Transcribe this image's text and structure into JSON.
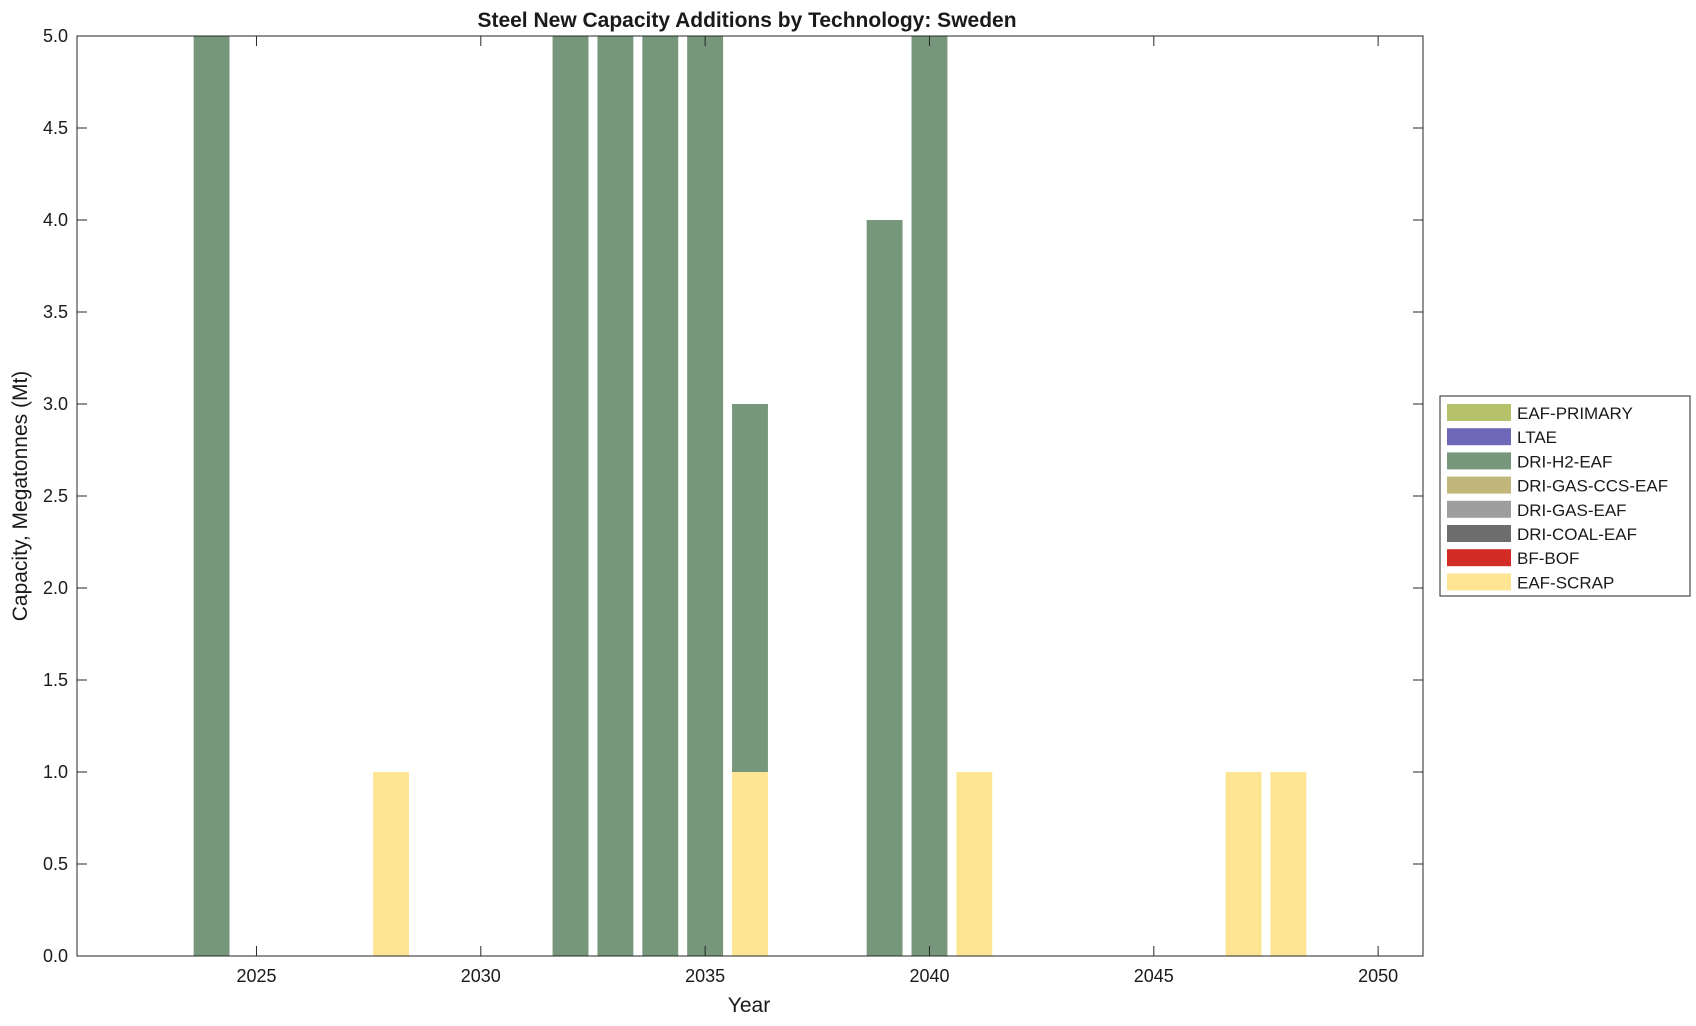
{
  "chart_data": {
    "type": "bar",
    "stacked": true,
    "title": "Steel New Capacity Additions by Technology: Sweden",
    "xlabel": "Year",
    "ylabel": "Capacity, Megatonnes (Mt)",
    "xlim": [
      2021,
      2051
    ],
    "ylim": [
      0,
      5
    ],
    "x_ticks": [
      2025,
      2030,
      2035,
      2040,
      2045,
      2050
    ],
    "y_ticks": [
      0.0,
      0.5,
      1.0,
      1.5,
      2.0,
      2.5,
      3.0,
      3.5,
      4.0,
      4.5,
      5.0
    ],
    "y_tick_labels": [
      "0.0",
      "0.5",
      "1.0",
      "1.5",
      "2.0",
      "2.5",
      "3.0",
      "3.5",
      "4.0",
      "4.5",
      "5.0"
    ],
    "grid": false,
    "legend_position": "right",
    "categories": [
      2024,
      2028,
      2032,
      2033,
      2034,
      2035,
      2036,
      2039,
      2040,
      2041,
      2047,
      2048
    ],
    "stack_order_bottom_to_top": [
      "EAF-SCRAP",
      "BF-BOF",
      "DRI-COAL-EAF",
      "DRI-GAS-EAF",
      "DRI-GAS-CCS-EAF",
      "DRI-H2-EAF",
      "LTAE",
      "EAF-PRIMARY"
    ],
    "series": [
      {
        "name": "EAF-PRIMARY",
        "color": "#b5c26a",
        "values": [
          0,
          0,
          0,
          0,
          0,
          0,
          0,
          0,
          0,
          0,
          0,
          0
        ]
      },
      {
        "name": "LTAE",
        "color": "#6f67b8",
        "values": [
          0,
          0,
          0,
          0,
          0,
          0,
          0,
          0,
          0,
          0,
          0,
          0
        ]
      },
      {
        "name": "DRI-H2-EAF",
        "color": "#76977c",
        "values": [
          5,
          0,
          5,
          5,
          5,
          5,
          2,
          4,
          5,
          0,
          0,
          0
        ]
      },
      {
        "name": "DRI-GAS-CCS-EAF",
        "color": "#c1b77a",
        "values": [
          0,
          0,
          0,
          0,
          0,
          0,
          0,
          0,
          0,
          0,
          0,
          0
        ]
      },
      {
        "name": "DRI-GAS-EAF",
        "color": "#9e9e9e",
        "values": [
          0,
          0,
          0,
          0,
          0,
          0,
          0,
          0,
          0,
          0,
          0,
          0
        ]
      },
      {
        "name": "DRI-COAL-EAF",
        "color": "#6d6d6d",
        "values": [
          0,
          0,
          0,
          0,
          0,
          0,
          0,
          0,
          0,
          0,
          0,
          0
        ]
      },
      {
        "name": "BF-BOF",
        "color": "#d32b26",
        "values": [
          0,
          0,
          0,
          0,
          0,
          0,
          0,
          0,
          0,
          0,
          0,
          0
        ]
      },
      {
        "name": "EAF-SCRAP",
        "color": "#fee594",
        "values": [
          0,
          1,
          0,
          0,
          0,
          0,
          1,
          0,
          0,
          1,
          1,
          1
        ]
      }
    ]
  }
}
